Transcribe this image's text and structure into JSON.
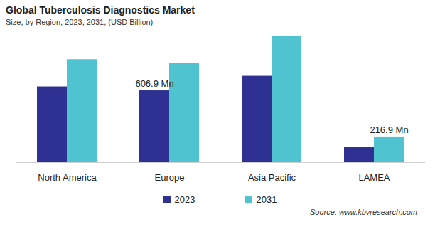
{
  "chart_data": {
    "type": "bar",
    "title": "Global Tuberculosis Diagnostics Market",
    "subtitle": "Size, by Region, 2023, 2031, (USD Billion)",
    "source": "Source: www.kbvresearch.com",
    "categories": [
      "North America",
      "Europe",
      "Asia Pacific",
      "LAMEA"
    ],
    "series": [
      {
        "name": "2023",
        "color": "#2e3192",
        "values": [
          640,
          606.9,
          730,
          130
        ],
        "value_labels": [
          null,
          "606.9 Mn",
          null,
          null
        ]
      },
      {
        "name": "2031",
        "color": "#4fc4d0",
        "values": [
          870,
          840,
          1070,
          216.9
        ],
        "value_labels": [
          null,
          null,
          null,
          "216.9 Mn"
        ]
      }
    ],
    "data_labels": true,
    "tick_labels": "x",
    "legend": "bottom"
  }
}
